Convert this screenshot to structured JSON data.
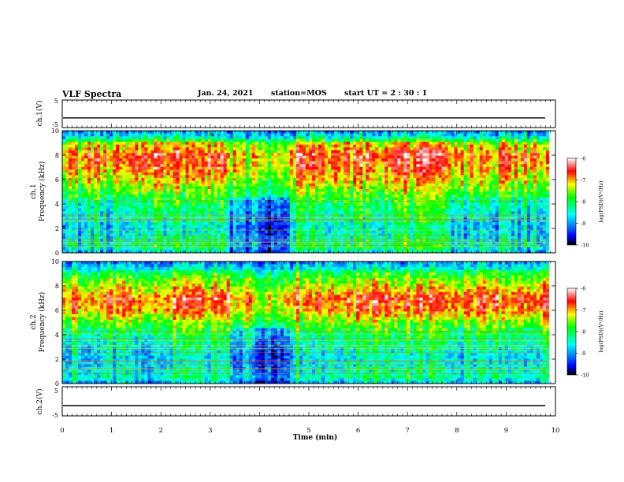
{
  "header": {
    "title": "VLF Spectra",
    "date": "Jan. 24, 2021",
    "station": "station=MOS",
    "start": "start UT =  2 : 30 : 1"
  },
  "panels": {
    "ch1v": {
      "label": "ch.1(V)",
      "top": "5",
      "bottom": "-5"
    },
    "spec1": {
      "label1": "ch.1",
      "label2": "Frequency (kHz)"
    },
    "spec2": {
      "label1": "ch.2",
      "label2": "Frequency (kHz)"
    },
    "ch2v": {
      "label": "ch.2(V)",
      "top": "5",
      "bottom": "-5"
    }
  },
  "colorbar": {
    "label": "log(PSD)(V²/Hz)",
    "ticks": [
      "-6",
      "-7",
      "-8",
      "-9",
      "-10"
    ],
    "range": [
      -10,
      -6
    ],
    "colors": [
      "#000000",
      "#0000ff",
      "#00ffff",
      "#00ff00",
      "#ffff00",
      "#ff0000",
      "#ffffff"
    ]
  },
  "chart_data": [
    {
      "type": "line",
      "title": "VLF Spectra",
      "ylabel": "ch.1(V)",
      "ylim": [
        -5,
        5
      ],
      "x": [
        0,
        10
      ],
      "y": [
        -1.5,
        -1.5
      ]
    },
    {
      "type": "heatmap",
      "ylabel": "ch.1 Frequency (kHz)",
      "xlim": [
        0,
        10
      ],
      "ylim": [
        0,
        10
      ],
      "yticks": [
        "0",
        "2",
        "4",
        "6",
        "8",
        "10"
      ],
      "x_segments_min": [
        0,
        1.8,
        3.4,
        4.05,
        4.6,
        5.4,
        6.8,
        7.9,
        9.85
      ],
      "segment_level": [
        0.52,
        0.6,
        0.38,
        0.28,
        0.58,
        0.6,
        0.66,
        0.5
      ],
      "freq_profile_khz": [
        0,
        0.5,
        1,
        2,
        3,
        4,
        5,
        6,
        7,
        8,
        9,
        9.5,
        10
      ],
      "level_profile": [
        0.35,
        0.5,
        0.45,
        0.38,
        0.45,
        0.5,
        0.6,
        0.72,
        0.82,
        0.85,
        0.7,
        0.35,
        0.25
      ]
    },
    {
      "type": "heatmap",
      "ylabel": "ch.2 Frequency (kHz)",
      "xlim": [
        0,
        10
      ],
      "ylim": [
        0,
        10
      ],
      "yticks": [
        "0",
        "2",
        "4",
        "6",
        "8",
        "10"
      ],
      "x_segments_min": [
        0,
        1.8,
        3.4,
        4.05,
        4.6,
        5.4,
        6.8,
        7.9,
        9.85
      ],
      "segment_level": [
        0.55,
        0.6,
        0.42,
        0.3,
        0.58,
        0.6,
        0.66,
        0.55
      ],
      "freq_profile_khz": [
        0,
        0.5,
        1,
        2,
        3,
        4,
        5,
        6,
        7,
        8,
        9,
        9.5,
        10
      ],
      "level_profile": [
        0.3,
        0.45,
        0.42,
        0.36,
        0.42,
        0.5,
        0.62,
        0.8,
        0.85,
        0.7,
        0.55,
        0.35,
        0.25
      ]
    },
    {
      "type": "line",
      "ylabel": "ch.2(V)",
      "xlabel": "Time (min)",
      "ylim": [
        -5,
        5
      ],
      "xlim": [
        0,
        10
      ],
      "xticks": [
        "0",
        "1",
        "2",
        "3",
        "4",
        "5",
        "6",
        "7",
        "8",
        "9",
        "10"
      ],
      "x": [
        0,
        10
      ],
      "y": [
        -1.5,
        -1.5
      ]
    }
  ]
}
